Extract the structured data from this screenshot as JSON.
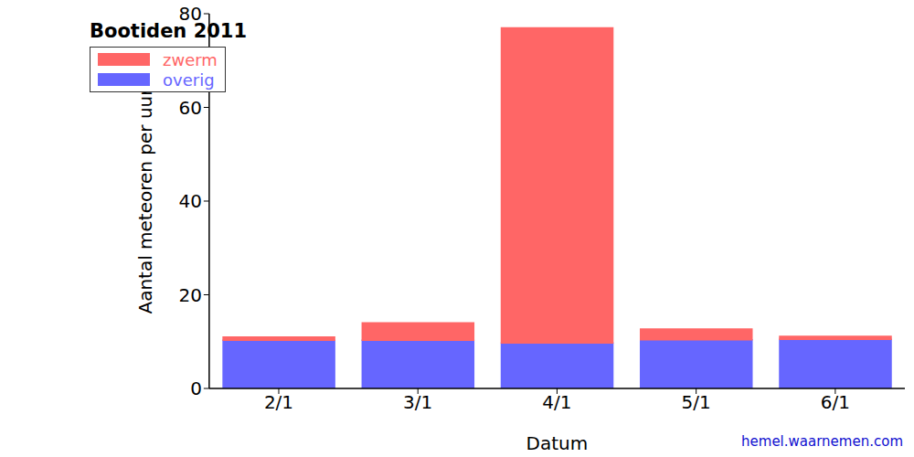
{
  "chart_data": {
    "type": "bar",
    "title": "Bootiden 2011",
    "x_label": "Datum",
    "y_label": "Aantal meteoren per uur",
    "annotation": "hemel.waarnemen.com",
    "categories": [
      "2/1",
      "3/1",
      "4/1",
      "5/1",
      "6/1"
    ],
    "series": [
      {
        "name": "zwerm",
        "color": "#ff6666",
        "values": [
          0.7,
          3.7,
          67.3,
          2.3,
          0.6
        ]
      },
      {
        "name": "overig",
        "color": "#6666ff",
        "values": [
          10.3,
          10.3,
          9.7,
          10.4,
          10.5
        ]
      }
    ],
    "stacked": true,
    "ylim": [
      0,
      80
    ],
    "yticks": [
      0,
      20,
      40,
      60,
      80
    ],
    "grid": false,
    "legend": "upper left"
  }
}
